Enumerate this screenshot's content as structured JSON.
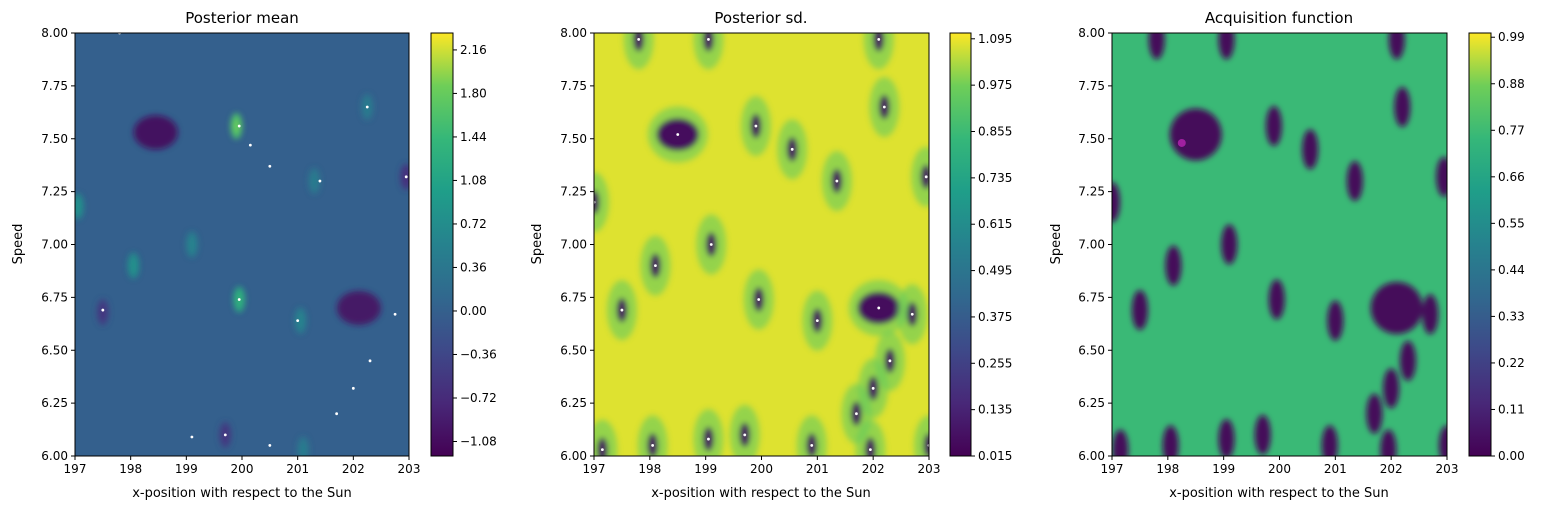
{
  "chart_data": [
    {
      "type": "heatmap",
      "title": "Posterior mean",
      "xlabel": "x-position with respect to the Sun",
      "ylabel": "Speed",
      "xlim": [
        197,
        203
      ],
      "ylim": [
        6.0,
        8.0
      ],
      "xticks": [
        "197",
        "198",
        "199",
        "200",
        "201",
        "202",
        "203"
      ],
      "yticks": [
        "6.00",
        "6.25",
        "6.50",
        "6.75",
        "7.00",
        "7.25",
        "7.50",
        "7.75",
        "8.00"
      ],
      "colorbar": {
        "ticks": [
          "−1.08",
          "−0.72",
          "−0.36",
          "0.00",
          "0.36",
          "0.72",
          "1.08",
          "1.44",
          "1.80",
          "2.16"
        ],
        "range": [
          -1.2,
          2.3
        ],
        "colormap": "viridis"
      },
      "background_value": 0.0,
      "features": [
        {
          "x": 198.45,
          "y": 7.53,
          "value": -1.08
        },
        {
          "x": 202.1,
          "y": 6.7,
          "value": -1.0
        },
        {
          "x": 199.9,
          "y": 7.56,
          "value": 1.6
        },
        {
          "x": 199.95,
          "y": 6.74,
          "value": 1.2
        },
        {
          "x": 198.05,
          "y": 6.9,
          "value": 0.7
        },
        {
          "x": 197.05,
          "y": 7.18,
          "value": 0.7
        },
        {
          "x": 201.05,
          "y": 6.64,
          "value": 0.5
        },
        {
          "x": 201.3,
          "y": 7.3,
          "value": 0.4
        },
        {
          "x": 202.25,
          "y": 7.65,
          "value": 0.4
        },
        {
          "x": 197.5,
          "y": 6.68,
          "value": -0.5
        },
        {
          "x": 199.7,
          "y": 6.1,
          "value": -0.5
        },
        {
          "x": 202.95,
          "y": 7.32,
          "value": -0.6
        },
        {
          "x": 199.1,
          "y": 7.0,
          "value": 0.5
        },
        {
          "x": 201.1,
          "y": 6.03,
          "value": 0.4
        }
      ],
      "points": [
        {
          "x": 199.95,
          "y": 7.56
        },
        {
          "x": 199.95,
          "y": 6.74
        },
        {
          "x": 200.15,
          "y": 7.47
        },
        {
          "x": 200.5,
          "y": 7.37
        },
        {
          "x": 201.4,
          "y": 7.3
        },
        {
          "x": 202.25,
          "y": 7.65
        },
        {
          "x": 202.95,
          "y": 7.32
        },
        {
          "x": 197.5,
          "y": 6.69
        },
        {
          "x": 199.7,
          "y": 6.1
        },
        {
          "x": 201.7,
          "y": 6.2
        },
        {
          "x": 202.0,
          "y": 6.32
        },
        {
          "x": 202.3,
          "y": 6.45
        },
        {
          "x": 201.0,
          "y": 6.64
        },
        {
          "x": 202.75,
          "y": 6.67
        },
        {
          "x": 199.1,
          "y": 6.09
        },
        {
          "x": 200.5,
          "y": 6.05
        },
        {
          "x": 197.8,
          "y": 8.0
        }
      ]
    },
    {
      "type": "heatmap",
      "title": "Posterior sd.",
      "xlabel": "x-position with respect to the Sun",
      "ylabel": "Speed",
      "xlim": [
        197,
        203
      ],
      "ylim": [
        6.0,
        8.0
      ],
      "xticks": [
        "197",
        "198",
        "199",
        "200",
        "201",
        "202",
        "203"
      ],
      "yticks": [
        "6.00",
        "6.25",
        "6.50",
        "6.75",
        "7.00",
        "7.25",
        "7.50",
        "7.75",
        "8.00"
      ],
      "colorbar": {
        "ticks": [
          "0.015",
          "0.135",
          "0.255",
          "0.375",
          "0.495",
          "0.615",
          "0.735",
          "0.855",
          "0.975",
          "1.095"
        ],
        "range": [
          0.015,
          1.11
        ],
        "colormap": "viridis"
      },
      "background_value": 1.08,
      "minima": [
        {
          "x": 198.5,
          "y": 7.52
        },
        {
          "x": 202.1,
          "y": 6.7
        },
        {
          "x": 199.9,
          "y": 7.56
        },
        {
          "x": 200.55,
          "y": 7.45
        },
        {
          "x": 201.35,
          "y": 7.3
        },
        {
          "x": 202.2,
          "y": 7.65
        },
        {
          "x": 202.95,
          "y": 7.32
        },
        {
          "x": 197.5,
          "y": 6.69
        },
        {
          "x": 198.1,
          "y": 6.9
        },
        {
          "x": 199.1,
          "y": 7.0
        },
        {
          "x": 199.95,
          "y": 6.74
        },
        {
          "x": 201.0,
          "y": 6.64
        },
        {
          "x": 202.7,
          "y": 6.67
        },
        {
          "x": 202.3,
          "y": 6.45
        },
        {
          "x": 202.0,
          "y": 6.32
        },
        {
          "x": 201.7,
          "y": 6.2
        },
        {
          "x": 199.7,
          "y": 6.1
        },
        {
          "x": 199.05,
          "y": 6.08
        },
        {
          "x": 198.05,
          "y": 6.05
        },
        {
          "x": 197.15,
          "y": 6.03
        },
        {
          "x": 200.9,
          "y": 6.05
        },
        {
          "x": 201.95,
          "y": 6.03
        },
        {
          "x": 203.0,
          "y": 6.05
        },
        {
          "x": 197.0,
          "y": 7.2
        },
        {
          "x": 197.8,
          "y": 7.97
        },
        {
          "x": 199.05,
          "y": 7.97
        },
        {
          "x": 202.1,
          "y": 7.97
        }
      ]
    },
    {
      "type": "heatmap",
      "title": "Acquisition function",
      "xlabel": "x-position with respect to the Sun",
      "ylabel": "Speed",
      "xlim": [
        197,
        203
      ],
      "ylim": [
        6.0,
        8.0
      ],
      "xticks": [
        "197",
        "198",
        "199",
        "200",
        "201",
        "202",
        "203"
      ],
      "yticks": [
        "6.00",
        "6.25",
        "6.50",
        "6.75",
        "7.00",
        "7.25",
        "7.50",
        "7.75",
        "8.00"
      ],
      "colorbar": {
        "ticks": [
          "0.00",
          "0.11",
          "0.22",
          "0.33",
          "0.44",
          "0.55",
          "0.66",
          "0.77",
          "0.88",
          "0.99"
        ],
        "range": [
          0.0,
          1.0
        ],
        "colormap": "viridis"
      },
      "background_value": 0.76,
      "selected_point": {
        "x": 198.25,
        "y": 7.48
      }
    }
  ]
}
